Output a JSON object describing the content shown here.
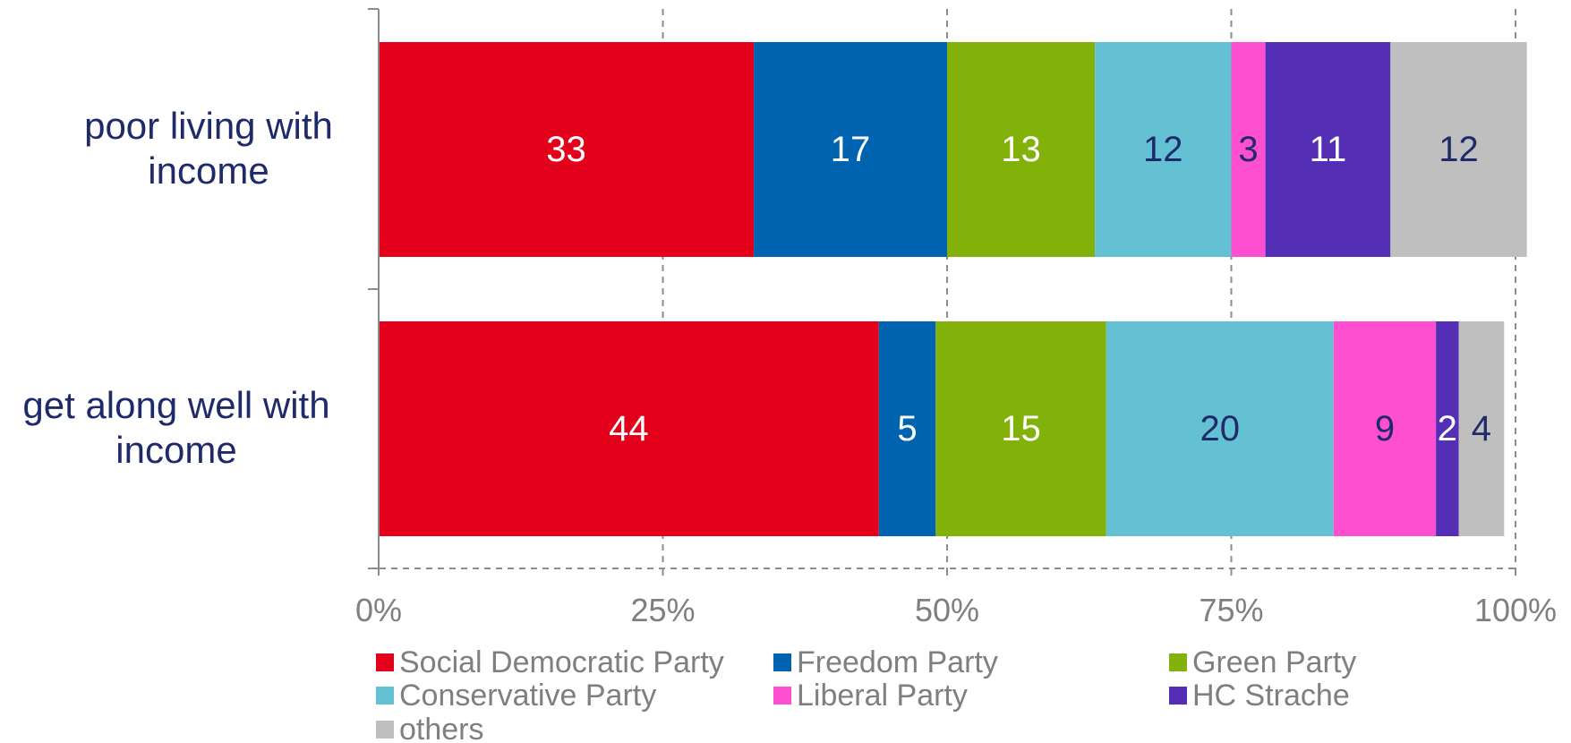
{
  "chart_data": {
    "type": "bar",
    "orientation": "horizontal",
    "stacked": true,
    "categories": [
      "poor living with income",
      "get along well with income"
    ],
    "category_lines": [
      [
        "poor living with",
        "income"
      ],
      [
        "get along well with",
        "income"
      ]
    ],
    "series": [
      {
        "name": "Social Democratic Party",
        "color": "#e2001a",
        "label_color": "#ffffff",
        "values": [
          33,
          44
        ]
      },
      {
        "name": "Freedom Party",
        "color": "#0063af",
        "label_color": "#ffffff",
        "values": [
          17,
          5
        ]
      },
      {
        "name": "Green Party",
        "color": "#82b20a",
        "label_color": "#ffffff",
        "values": [
          13,
          15
        ]
      },
      {
        "name": "Conservative Party",
        "color": "#63c1d3",
        "label_color": "#1f2a6b",
        "values": [
          12,
          20
        ]
      },
      {
        "name": "Liberal Party",
        "color": "#ff4fd1",
        "label_color": "#1f2a6b",
        "values": [
          3,
          9
        ]
      },
      {
        "name": "HC Strache",
        "color": "#542fb5",
        "label_color": "#ffffff",
        "values": [
          11,
          2
        ]
      },
      {
        "name": "others",
        "color": "#bfbfbf",
        "label_color": "#1f2a6b",
        "values": [
          12,
          4
        ]
      }
    ],
    "xlim": [
      0,
      100
    ],
    "x_ticks": [
      0,
      25,
      50,
      75,
      100
    ],
    "x_tick_labels": [
      "0%",
      "25%",
      "50%",
      "75%",
      "100%"
    ],
    "grid": "vertical dashed",
    "legend_position": "bottom",
    "title": "",
    "xlabel": "",
    "ylabel": ""
  }
}
